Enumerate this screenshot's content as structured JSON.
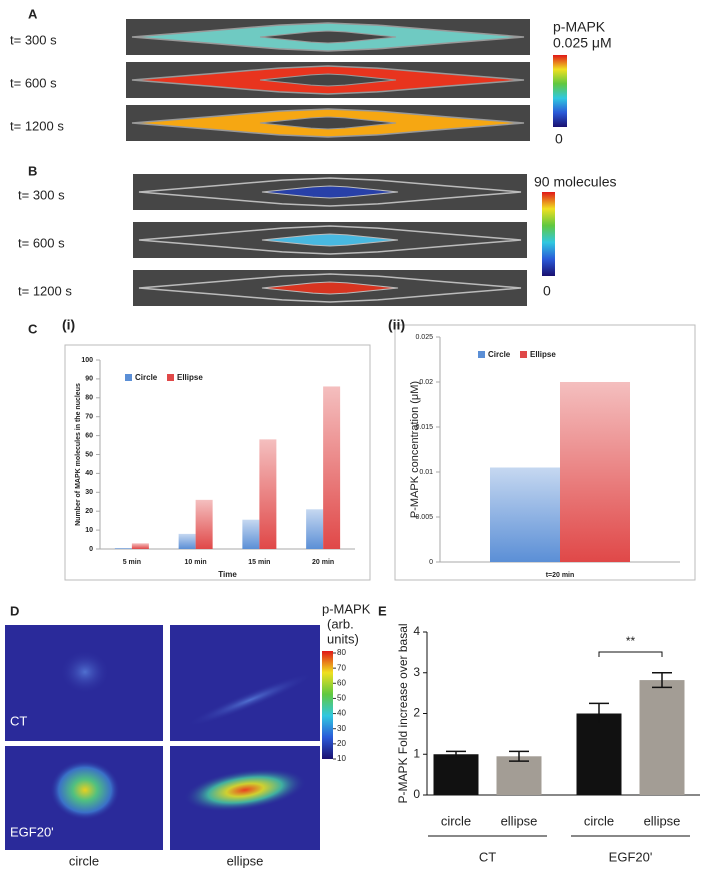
{
  "panels": {
    "A": {
      "letter": "A",
      "rows": [
        "t= 300 s",
        "t= 600 s",
        "t= 1200 s"
      ],
      "colorbar_title": "p-MAPK",
      "colorbar_max": "0.025 μM",
      "colorbar_min": 0
    },
    "B": {
      "letter": "B",
      "rows": [
        "t= 300 s",
        "t= 600 s",
        "t= 1200 s"
      ],
      "colorbar_max": "90 molecules",
      "colorbar_min": 0
    },
    "C": {
      "letter": "C"
    },
    "D": {
      "letter": "D",
      "rows": [
        "CT",
        "EGF20'"
      ],
      "columns": [
        "circle",
        "ellipse"
      ],
      "colorbar_title": [
        "p-MAPK",
        "(arb.",
        "units)"
      ],
      "colorbar_ticks": [
        10,
        20,
        30,
        40,
        50,
        60,
        70,
        80
      ]
    },
    "E": {
      "letter": "E"
    }
  },
  "chart_data": [
    {
      "type": "bar",
      "label": "(i)",
      "categories": [
        "5 min",
        "10 min",
        "15 min",
        "20 min"
      ],
      "series": [
        {
          "name": "Circle",
          "color": "#5b8fd6",
          "values": [
            0.5,
            8,
            15.5,
            21
          ]
        },
        {
          "name": "Ellipse",
          "color": "#e04848",
          "values": [
            3,
            26,
            58,
            86
          ]
        }
      ],
      "ylim": [
        0,
        100
      ],
      "yticks": [
        0,
        10,
        20,
        30,
        40,
        50,
        60,
        70,
        80,
        90,
        100
      ],
      "ylabel": "Number of MAPK molecules in the nucleus",
      "xlabel": "Time"
    },
    {
      "type": "bar",
      "label": "(ii)",
      "categories": [
        "t=20 min"
      ],
      "series": [
        {
          "name": "Circle",
          "color": "#5b8fd6",
          "values": [
            0.0105
          ]
        },
        {
          "name": "Ellipse",
          "color": "#e04848",
          "values": [
            0.02
          ]
        }
      ],
      "ylim": [
        0,
        0.025
      ],
      "yticks": [
        0,
        0.005,
        0.01,
        0.015,
        0.02,
        0.025
      ],
      "ylabel": "P-MAPK concentration (μM)"
    },
    {
      "type": "bar",
      "categories": [
        "circle",
        "ellipse",
        "circle",
        "ellipse"
      ],
      "groups": [
        "CT",
        "EGF20'"
      ],
      "values": [
        1.0,
        0.95,
        2.0,
        2.82
      ],
      "errors": [
        0.07,
        0.12,
        0.25,
        0.18
      ],
      "colors": [
        "#111111",
        "#a39d95",
        "#111111",
        "#a39d95"
      ],
      "ylim": [
        0,
        4
      ],
      "yticks": [
        0,
        1,
        2,
        3,
        4
      ],
      "ylabel": "P-MAPK Fold increase over basal",
      "annotation": "**"
    }
  ]
}
